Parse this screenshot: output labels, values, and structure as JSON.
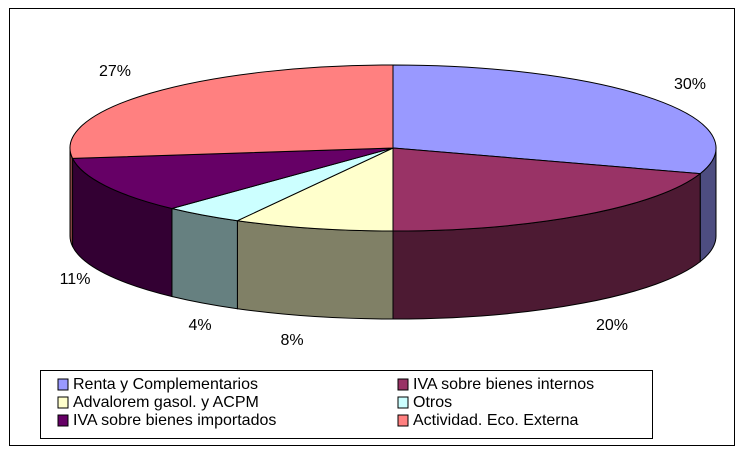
{
  "chart_data": {
    "type": "pie",
    "categories": [
      "Renta y Complementarios",
      "IVA sobre bienes internos",
      "Advalorem gasol. y ACPM",
      "Otros",
      "IVA sobre bienes importados",
      "Actividad. Eco. Externa"
    ],
    "values": [
      30,
      20,
      8,
      4,
      11,
      27
    ],
    "value_labels": [
      "30%",
      "20%",
      "8%",
      "4%",
      "11%",
      "27%"
    ],
    "colors": [
      "#9999ff",
      "#993366",
      "#ffffcc",
      "#ccffff",
      "#660066",
      "#ff8080"
    ],
    "side_colors": [
      "#4d4d80",
      "#4d1a33",
      "#808066",
      "#668080",
      "#330033",
      "#804040"
    ]
  }
}
